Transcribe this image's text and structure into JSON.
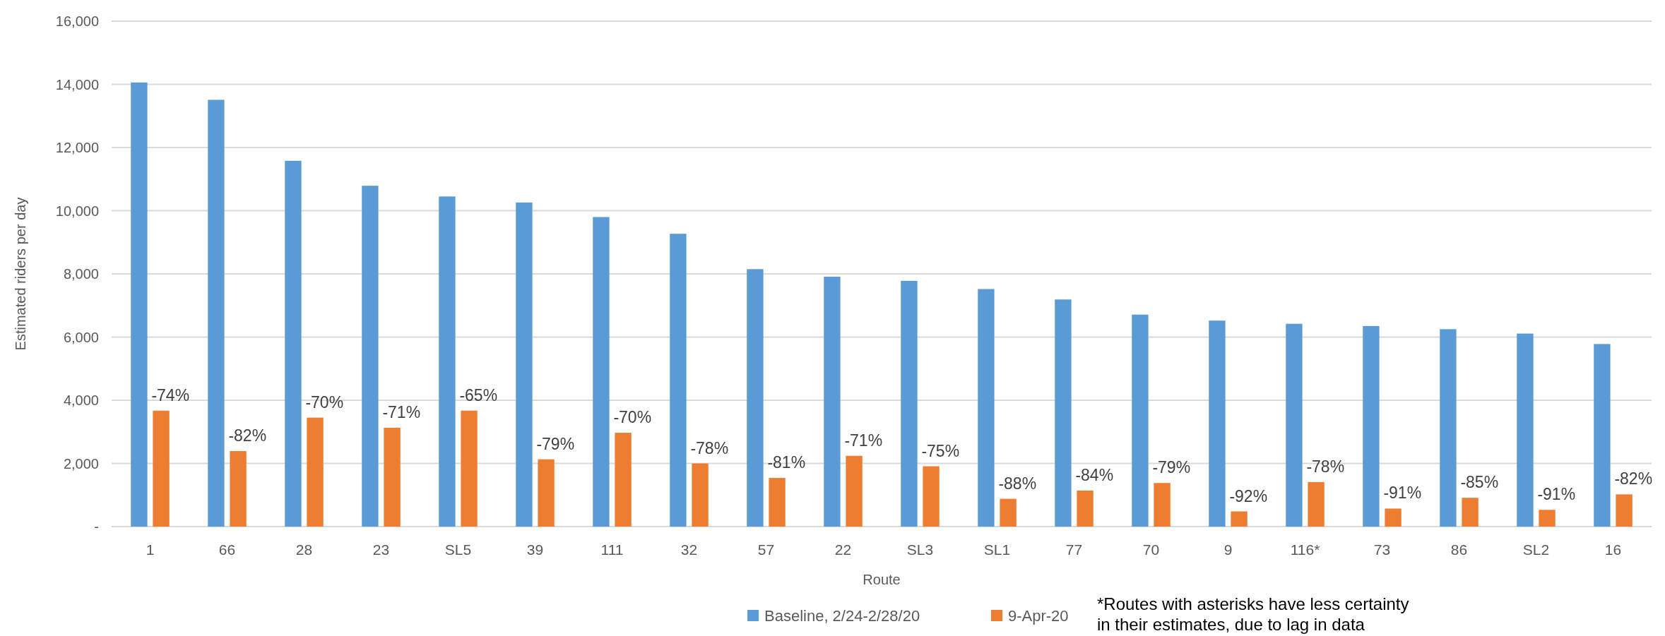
{
  "chart_data": {
    "type": "bar",
    "xlabel": "Route",
    "ylabel": "Estimated riders per day",
    "categories": [
      "1",
      "66",
      "28",
      "23",
      "SL5",
      "39",
      "111",
      "32",
      "57",
      "22",
      "SL3",
      "SL1",
      "77",
      "70",
      "9",
      "116*",
      "73",
      "86",
      "SL2",
      "16"
    ],
    "series": [
      {
        "name": "Baseline, 2/24-2/28/20",
        "color": "#5b9bd5",
        "values": [
          14060,
          13510,
          11580,
          10790,
          10450,
          10260,
          9800,
          9270,
          8150,
          7910,
          7780,
          7520,
          7190,
          6710,
          6520,
          6420,
          6350,
          6250,
          6110,
          5780
        ]
      },
      {
        "name": "9-Apr-20",
        "color": "#ed7d31",
        "values": [
          3670,
          2390,
          3450,
          3130,
          3670,
          2130,
          2970,
          2000,
          1540,
          2240,
          1910,
          880,
          1140,
          1380,
          480,
          1410,
          570,
          910,
          530,
          1020
        ]
      }
    ],
    "ylim": [
      0,
      16000
    ],
    "yticks": [
      {
        "value": 0,
        "label": "-"
      },
      {
        "value": 2000,
        "label": "2,000"
      },
      {
        "value": 4000,
        "label": "4,000"
      },
      {
        "value": 6000,
        "label": "6,000"
      },
      {
        "value": 8000,
        "label": "8,000"
      },
      {
        "value": 10000,
        "label": "10,000"
      },
      {
        "value": 12000,
        "label": "12,000"
      },
      {
        "value": 14000,
        "label": "14,000"
      },
      {
        "value": 16000,
        "label": "16,000"
      }
    ],
    "grid": "y",
    "legend": "bottom",
    "annotations": [
      {
        "text": "-74%",
        "x": "1",
        "y": 3670
      },
      {
        "text": "-82%",
        "x": "66",
        "y": 2390
      },
      {
        "text": "-70%",
        "x": "28",
        "y": 3450
      },
      {
        "text": "-71%",
        "x": "23",
        "y": 3130
      },
      {
        "text": "-65%",
        "x": "SL5",
        "y": 3670
      },
      {
        "text": "-79%",
        "x": "39",
        "y": 2130
      },
      {
        "text": "-70%",
        "x": "111",
        "y": 2970
      },
      {
        "text": "-78%",
        "x": "32",
        "y": 2000
      },
      {
        "text": "-81%",
        "x": "57",
        "y": 1540
      },
      {
        "text": "-71%",
        "x": "22",
        "y": 2240
      },
      {
        "text": "-75%",
        "x": "SL3",
        "y": 1910
      },
      {
        "text": "-88%",
        "x": "SL1",
        "y": 880
      },
      {
        "text": "-84%",
        "x": "77",
        "y": 1140
      },
      {
        "text": "-79%",
        "x": "70",
        "y": 1380
      },
      {
        "text": "-92%",
        "x": "9",
        "y": 480
      },
      {
        "text": "-78%",
        "x": "116*",
        "y": 1410
      },
      {
        "text": "-91%",
        "x": "73",
        "y": 570
      },
      {
        "text": "-85%",
        "x": "86",
        "y": 910
      },
      {
        "text": "-91%",
        "x": "SL2",
        "y": 530
      },
      {
        "text": "-82%",
        "x": "16",
        "y": 1020
      },
      "*Routes with asterisks have less certainty in their estimates, due to lag in data"
    ]
  }
}
